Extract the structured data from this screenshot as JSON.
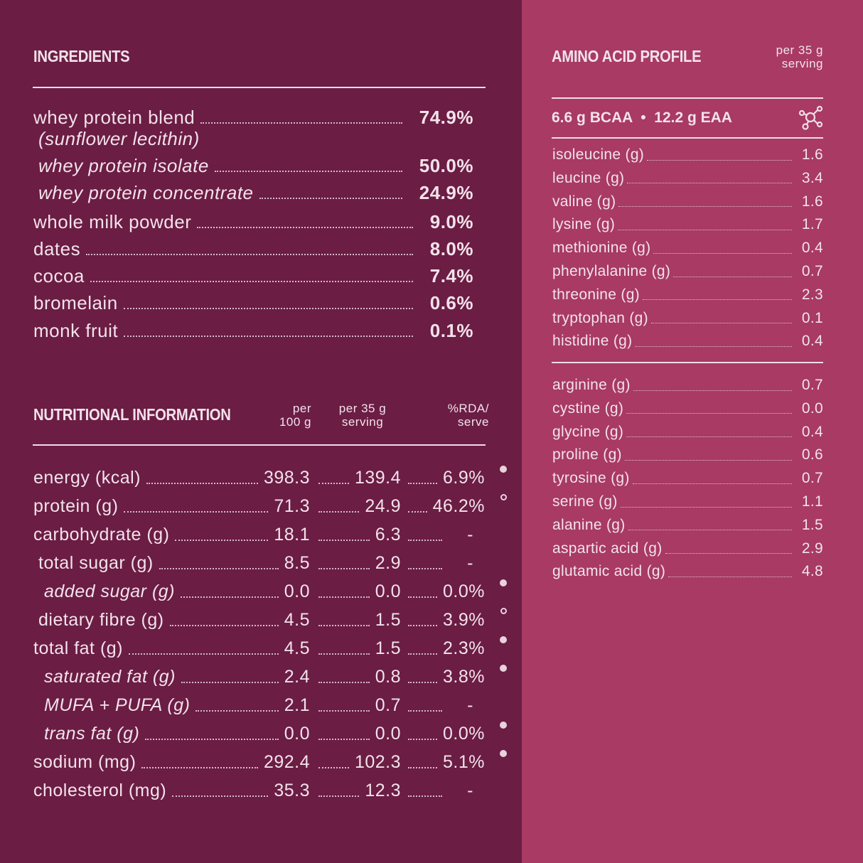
{
  "ingredients": {
    "title": "INGREDIENTS",
    "items": [
      {
        "name": "whey protein blend",
        "value": "74.9%",
        "style": "main"
      },
      {
        "name": "(sunflower lecithin)",
        "value": "",
        "style": "sub"
      },
      {
        "name": "whey protein isolate",
        "value": "50.0%",
        "style": "sub"
      },
      {
        "name": "whey protein concentrate",
        "value": "24.9%",
        "style": "sub"
      },
      {
        "name": "whole milk powder",
        "value": "9.0%",
        "style": "main"
      },
      {
        "name": "dates",
        "value": "8.0%",
        "style": "main"
      },
      {
        "name": "cocoa",
        "value": "7.4%",
        "style": "main"
      },
      {
        "name": "bromelain",
        "value": "0.6%",
        "style": "main"
      },
      {
        "name": "monk fruit",
        "value": "0.1%",
        "style": "main"
      }
    ]
  },
  "nutrition": {
    "title": "NUTRITIONAL INFORMATION",
    "col1": [
      "per",
      "100 g"
    ],
    "col2": [
      "per 35 g",
      "serving"
    ],
    "col3": [
      "%RDA/",
      "serve"
    ],
    "rows": [
      {
        "name": "energy (kcal)",
        "per100": "398.3",
        "serving": "139.4",
        "rda": "6.9%",
        "style": "main",
        "marker": "filled"
      },
      {
        "name": "protein (g)",
        "per100": "71.3",
        "serving": "24.9",
        "rda": "46.2%",
        "style": "main",
        "marker": "hollow"
      },
      {
        "name": "carbohydrate (g)",
        "per100": "18.1",
        "serving": "6.3",
        "rda": "-",
        "style": "main",
        "marker": ""
      },
      {
        "name": "total sugar (g)",
        "per100": "8.5",
        "serving": "2.9",
        "rda": "-",
        "style": "indent",
        "marker": ""
      },
      {
        "name": "added sugar (g)",
        "per100": "0.0",
        "serving": "0.0",
        "rda": "0.0%",
        "style": "italic",
        "marker": "filled"
      },
      {
        "name": "dietary fibre (g)",
        "per100": "4.5",
        "serving": "1.5",
        "rda": "3.9%",
        "style": "indent",
        "marker": "hollow"
      },
      {
        "name": "total fat (g)",
        "per100": "4.5",
        "serving": "1.5",
        "rda": "2.3%",
        "style": "main",
        "marker": "filled"
      },
      {
        "name": "saturated fat (g)",
        "per100": "2.4",
        "serving": "0.8",
        "rda": "3.8%",
        "style": "italic",
        "marker": "filled"
      },
      {
        "name": "MUFA + PUFA (g)",
        "per100": "2.1",
        "serving": "0.7",
        "rda": "-",
        "style": "italic",
        "marker": ""
      },
      {
        "name": "trans fat (g)",
        "per100": "0.0",
        "serving": "0.0",
        "rda": "0.0%",
        "style": "italic",
        "marker": "filled"
      },
      {
        "name": "sodium (mg)",
        "per100": "292.4",
        "serving": "102.3",
        "rda": "5.1%",
        "style": "main",
        "marker": "filled"
      },
      {
        "name": "cholesterol (mg)",
        "per100": "35.3",
        "serving": "12.3",
        "rda": "-",
        "style": "main",
        "marker": ""
      }
    ]
  },
  "amino": {
    "title": "AMINO ACID PROFILE",
    "unit": [
      "per 35 g",
      "serving"
    ],
    "summary": "6.6 g BCAA  •  12.2 g EAA",
    "icon": "molecule-icon",
    "essential": [
      [
        "isoleucine (g)",
        "1.6"
      ],
      [
        "leucine (g)",
        "3.4"
      ],
      [
        "valine (g)",
        "1.6"
      ],
      [
        "lysine (g)",
        "1.7"
      ],
      [
        "methionine (g)",
        "0.4"
      ],
      [
        "phenylalanine (g)",
        "0.7"
      ],
      [
        "threonine (g)",
        "2.3"
      ],
      [
        "tryptophan (g)",
        "0.1"
      ],
      [
        "histidine (g)",
        "0.4"
      ]
    ],
    "other": [
      [
        "arginine (g)",
        "0.7"
      ],
      [
        "cystine (g)",
        "0.0"
      ],
      [
        "glycine (g)",
        "0.4"
      ],
      [
        "proline (g)",
        "0.6"
      ],
      [
        "tyrosine (g)",
        "0.7"
      ],
      [
        "serine (g)",
        "1.1"
      ],
      [
        "alanine (g)",
        "1.5"
      ],
      [
        "aspartic acid (g)",
        "2.9"
      ],
      [
        "glutamic acid (g)",
        "4.8"
      ]
    ]
  },
  "colors": {
    "left": "#6b1d44",
    "right": "#a83a63",
    "text": "#f3e2ea"
  }
}
